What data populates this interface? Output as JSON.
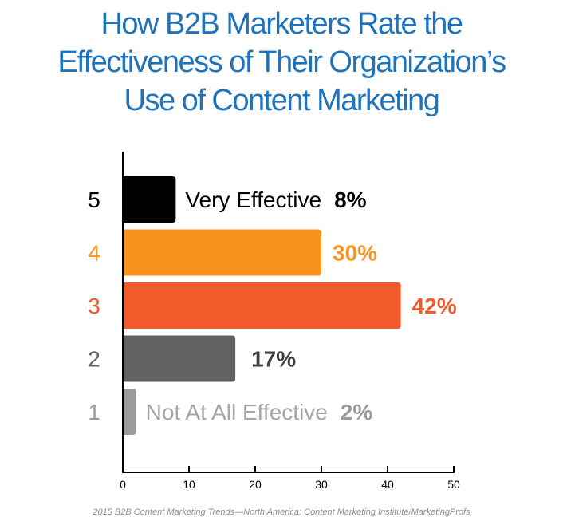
{
  "title_lines": [
    "How B2B Marketers Rate the",
    "Effectiveness of Their Organization’s",
    "Use of Content Marketing"
  ],
  "source": "2015 B2B Content Marketing Trends—North America: Content Marketing Institute/MarketingProfs",
  "chart_data": {
    "type": "bar",
    "orientation": "horizontal",
    "title": "How B2B Marketers Rate the Effectiveness of Their Organization’s Use of Content Marketing",
    "categories": [
      "5",
      "4",
      "3",
      "2",
      "1"
    ],
    "category_labels": [
      "Very Effective",
      "",
      "",
      "",
      "Not At All Effective"
    ],
    "values": [
      8,
      30,
      42,
      17,
      2
    ],
    "value_labels": [
      "8%",
      "30%",
      "42%",
      "17%",
      "2%"
    ],
    "colors": [
      "#000000",
      "#f7931e",
      "#f15a2b",
      "#626262",
      "#9b9b9b"
    ],
    "category_label_colors": [
      "#000000",
      "#f7931e",
      "#f15a2b",
      "#626262",
      "#9b9b9b"
    ],
    "value_label_colors": [
      "#000000",
      "#f7931e",
      "#f15a2b",
      "#404040",
      "#9b9b9b"
    ],
    "text_label_colors": [
      "#000000",
      "",
      "",
      "",
      "#a6a6a6"
    ],
    "xlim": [
      0,
      50
    ],
    "xticks": [
      "0",
      "10",
      "20",
      "30",
      "40",
      "50"
    ],
    "xlabel": "",
    "ylabel": "",
    "grid": false,
    "legend": "none"
  }
}
